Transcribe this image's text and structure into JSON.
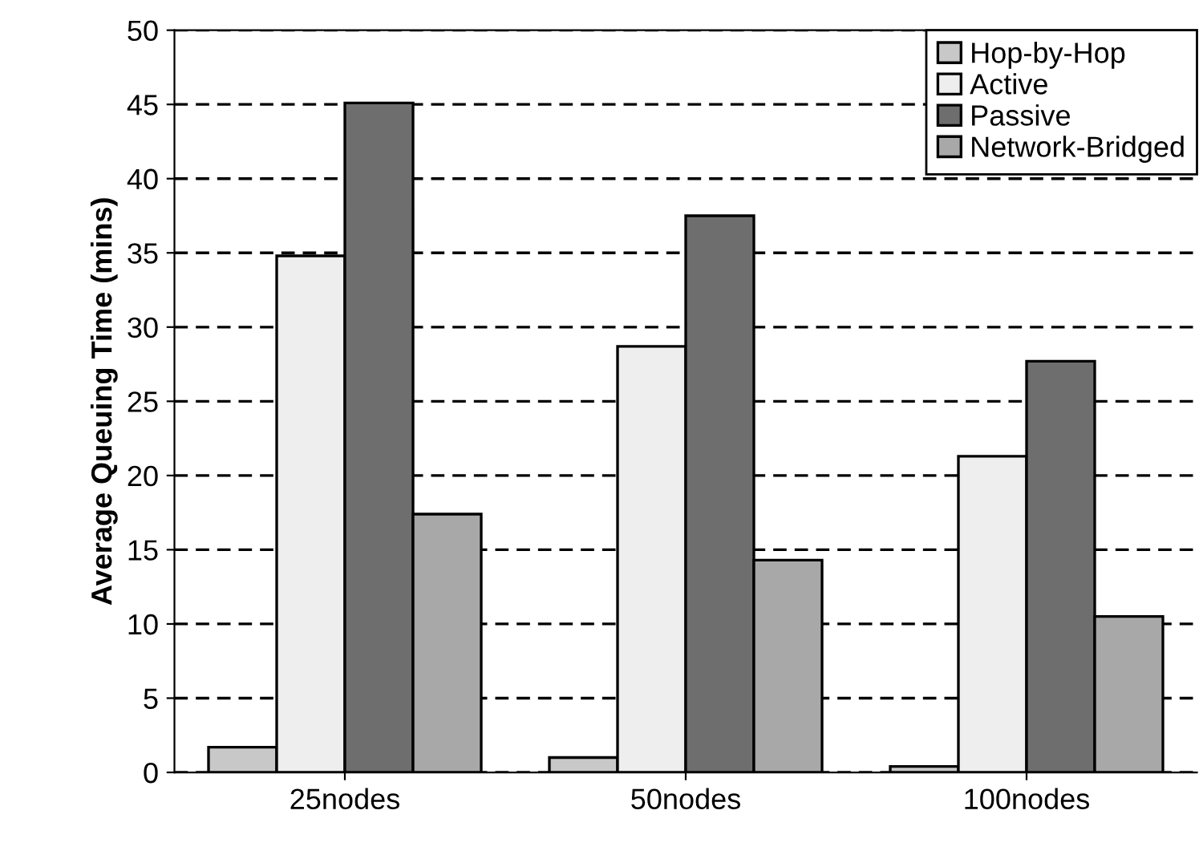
{
  "chart_data": {
    "type": "bar",
    "ylabel": "Average Queuing Time (mins)",
    "categories": [
      "25nodes",
      "50nodes",
      "100nodes"
    ],
    "series": [
      {
        "name": "Hop-by-Hop",
        "color": "#c8c8c8",
        "values": [
          1.7,
          1.0,
          0.4
        ]
      },
      {
        "name": "Active",
        "color": "#eeeeee",
        "values": [
          34.8,
          28.7,
          21.3
        ]
      },
      {
        "name": "Passive",
        "color": "#6e6e6e",
        "values": [
          45.1,
          37.5,
          27.7
        ]
      },
      {
        "name": "Network-Bridged",
        "color": "#a8a8a8",
        "values": [
          17.4,
          14.3,
          10.5
        ]
      }
    ],
    "ylim": [
      0,
      50
    ],
    "yticks": [
      0,
      5,
      10,
      15,
      20,
      25,
      30,
      35,
      40,
      45,
      50
    ],
    "grid": "y",
    "legend": "top right"
  }
}
